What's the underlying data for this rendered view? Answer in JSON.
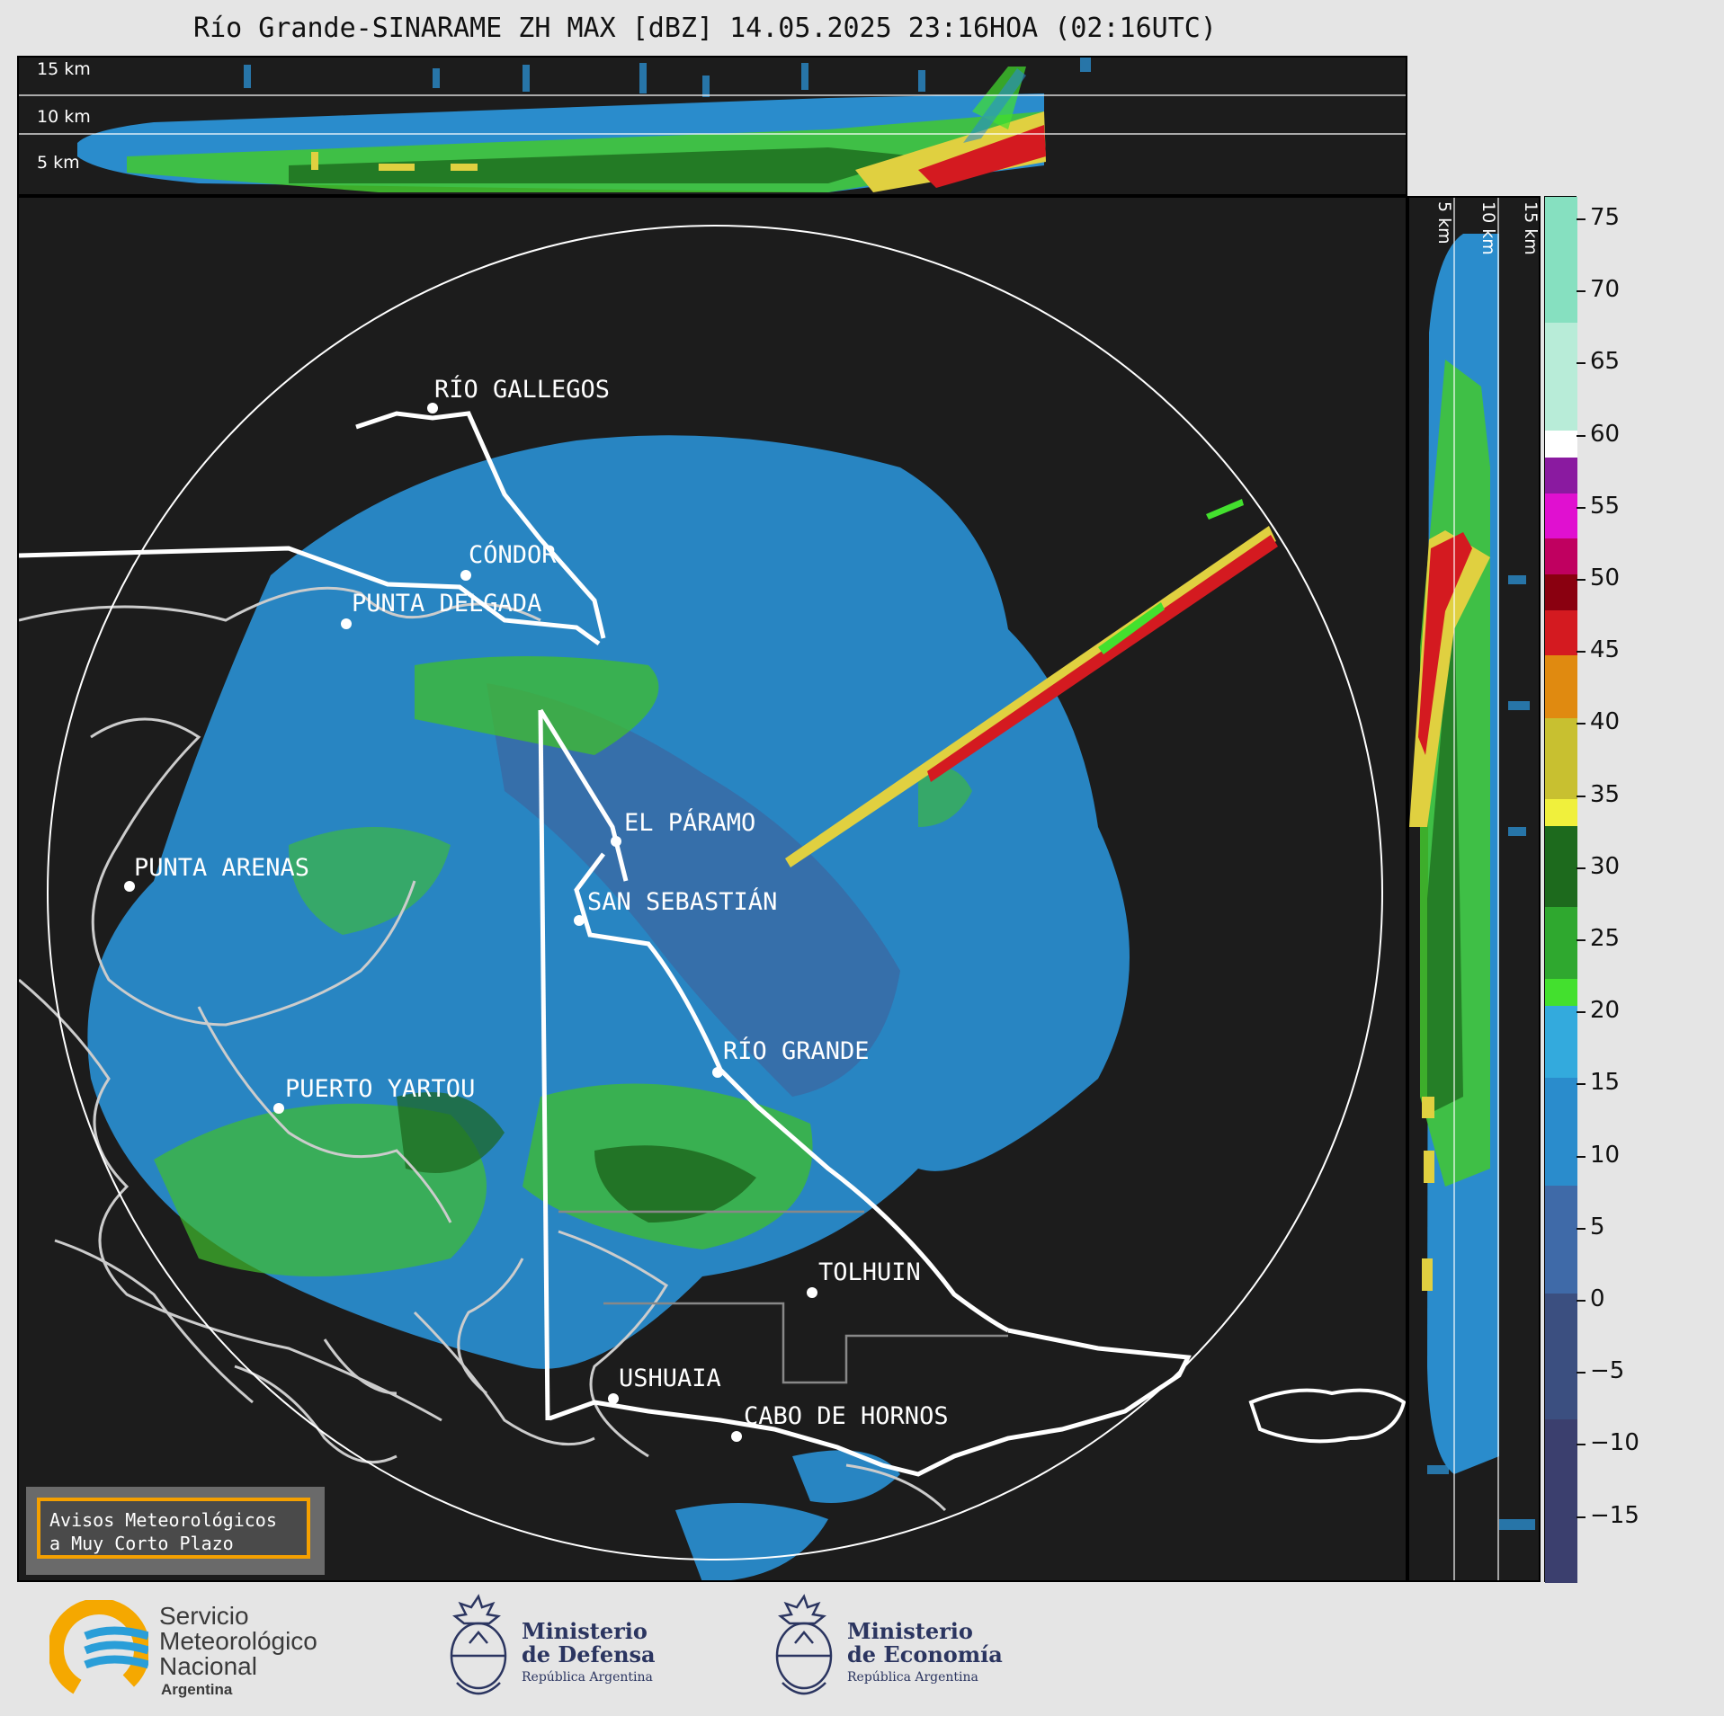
{
  "title": "Río Grande-SINARAME ZH MAX [dBZ] 14.05.2025 23:16HOA (02:16UTC)",
  "altitude_labels": [
    "15 km",
    "10 km",
    "5 km"
  ],
  "cities": [
    {
      "name": "RÍO GALLEGOS"
    },
    {
      "name": "CÓNDOR"
    },
    {
      "name": "PUNTA DELGADA"
    },
    {
      "name": "EL PÁRAMO"
    },
    {
      "name": "PUNTA ARENAS"
    },
    {
      "name": "SAN SEBASTIÁN"
    },
    {
      "name": "RÍO GRANDE"
    },
    {
      "name": "PUERTO YARTOU"
    },
    {
      "name": "TOLHUIN"
    },
    {
      "name": "USHUAIA"
    },
    {
      "name": "CABO DE HORNOS"
    }
  ],
  "warning": {
    "line1": "Avisos Meteorológicos",
    "line2": "a Muy Corto Plazo"
  },
  "colorbar": {
    "unit": "dBZ",
    "ticks": [
      "75",
      "70",
      "65",
      "60",
      "55",
      "50",
      "45",
      "40",
      "35",
      "30",
      "25",
      "20",
      "15",
      "10",
      "5",
      "0",
      "−5",
      "−10",
      "−15"
    ],
    "colors": {
      "negative": "#3b3f6e",
      "low_blue": "#2a8ccc",
      "light_blue": "#33aadd",
      "green_light": "#43e02e",
      "green_dark": "#1d6a1d",
      "yellow": "#f0f03c",
      "orange": "#e08a10",
      "red": "#d41a20",
      "magenta": "#e010d0",
      "purple": "#8a1aa0",
      "white": "#ffffff",
      "mint": "#86e0c0"
    }
  },
  "logos": {
    "smn": {
      "line1": "Servicio",
      "line2": "Meteorológico",
      "line3": "Nacional",
      "line4": "Argentina"
    },
    "defensa": {
      "line1": "Ministerio",
      "line2": "de Defensa",
      "sub": "República Argentina"
    },
    "economia": {
      "line1": "Ministerio",
      "line2": "de Economía",
      "sub": "República Argentina"
    }
  }
}
